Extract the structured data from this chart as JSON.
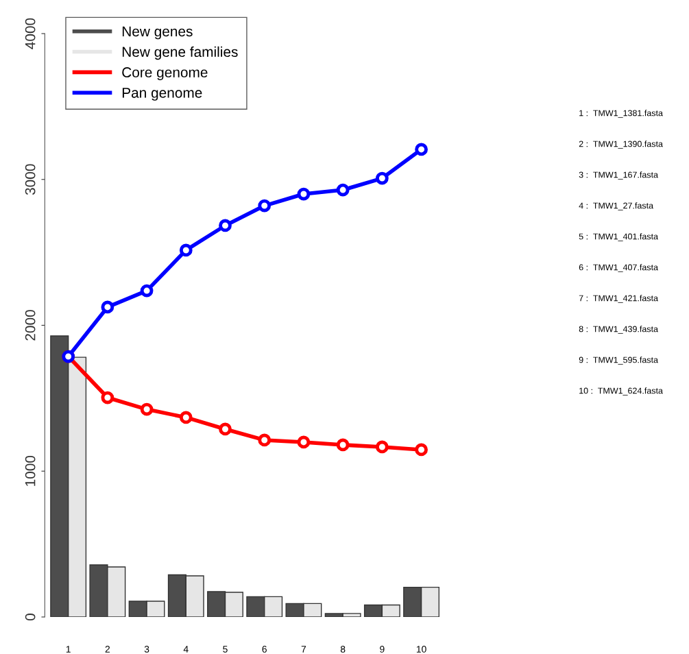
{
  "chart_data": {
    "type": "bar",
    "categories": [
      "1",
      "2",
      "3",
      "4",
      "5",
      "6",
      "7",
      "8",
      "9",
      "10"
    ],
    "series": [
      {
        "name": "New genes",
        "color": "#4d4d4d",
        "values": [
          1927,
          357,
          108,
          289,
          174,
          139,
          92,
          24,
          82,
          204
        ]
      },
      {
        "name": "New gene families",
        "color": "#e6e6e6",
        "values": [
          1781,
          343,
          108,
          282,
          169,
          139,
          92,
          24,
          82,
          204
        ]
      },
      {
        "name": "Core genome",
        "type": "line",
        "color": "#ff0000",
        "values": [
          1786,
          1504,
          1424,
          1368,
          1288,
          1213,
          1199,
          1180,
          1166,
          1147
        ]
      },
      {
        "name": "Pan genome",
        "type": "line",
        "color": "#0000ff",
        "values": [
          1786,
          2125,
          2237,
          2515,
          2684,
          2820,
          2900,
          2928,
          3008,
          3206
        ]
      }
    ],
    "ylim": [
      0,
      4000
    ],
    "yticks": [
      0,
      1000,
      2000,
      3000,
      4000
    ],
    "marker": "circle",
    "line_style": "solid",
    "grid": false,
    "legend": "top left",
    "annotations": [
      "1 :  TMW1_1381.fasta",
      "2 :  TMW1_1390.fasta",
      "3 :  TMW1_167.fasta",
      "4 :  TMW1_27.fasta",
      "5 :  TMW1_401.fasta",
      "6 :  TMW1_407.fasta",
      "7 :  TMW1_421.fasta",
      "8 :  TMW1_439.fasta",
      "9 :  TMW1_595.fasta",
      "10 :  TMW1_624.fasta"
    ]
  }
}
